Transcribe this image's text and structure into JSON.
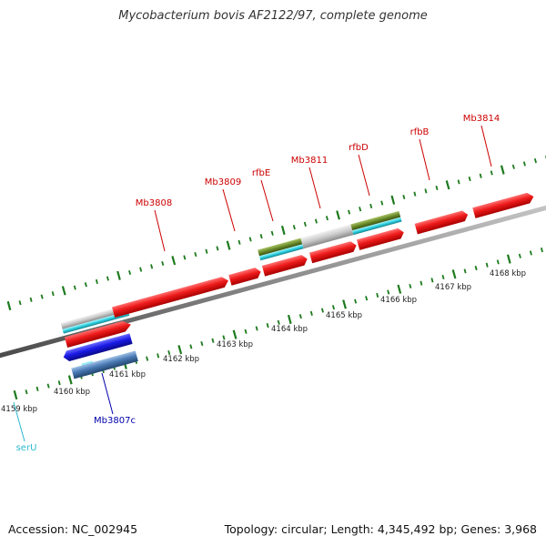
{
  "title": "Mycobacterium bovis AF2122/97, complete genome",
  "footer": {
    "accession": "Accession: NC_002945",
    "summary": "Topology: circular; Length: 4,345,492 bp; Genes: 3,968"
  },
  "colors": {
    "forward_gene": "#e61919",
    "reverse_gene": "#1a1ae6",
    "reverse_gene_light": "#4a7ab5",
    "trna": "#2bd0e0",
    "feature_grey": "#c8c8c8",
    "feature_olive": "#6a8a2a",
    "backbone": "#8a8a8a",
    "tick": "#1d7a1d",
    "forward_label": "#cc0000",
    "reverse_label": "#0000aa",
    "trna_label": "#2bbad0"
  },
  "scale": {
    "labels": [
      "4159 kbp",
      "4160 kbp",
      "4161 kbp",
      "4162 kbp",
      "4163 kbp",
      "4164 kbp",
      "4165 kbp",
      "4166 kbp",
      "4167 kbp",
      "4168 kbp"
    ]
  },
  "gene_labels": {
    "forward": [
      "Mb3808",
      "Mb3809",
      "rfbE",
      "Mb3811",
      "rfbD",
      "rfbB",
      "Mb3814"
    ],
    "reverse": [
      "Mb3807c"
    ],
    "trna": [
      "serU"
    ]
  }
}
